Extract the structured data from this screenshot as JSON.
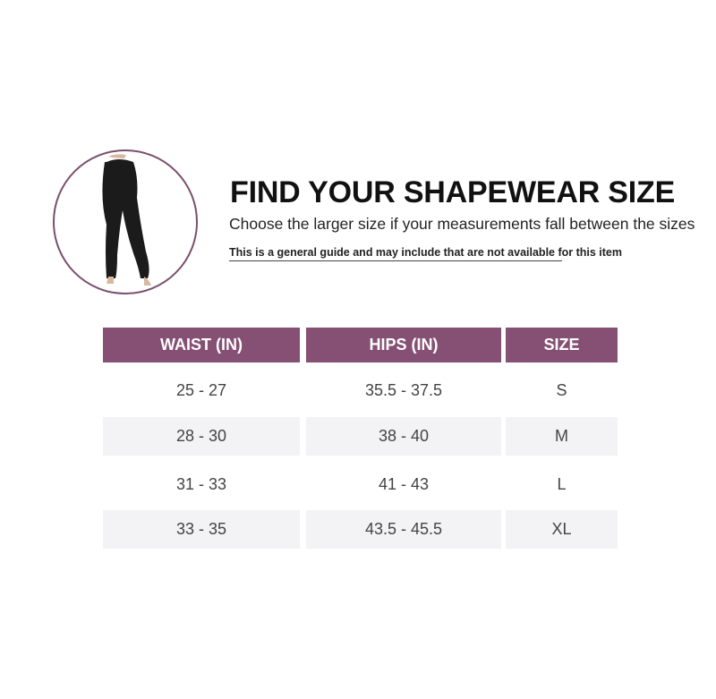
{
  "header": {
    "title": "FIND YOUR SHAPEWEAR SIZE",
    "subtitle": "Choose the larger size if your measurements fall between the sizes",
    "note": "This is a general guide and may include that are not available for this item"
  },
  "product_image": {
    "icon": "leggings-model-photo"
  },
  "colors": {
    "accent": "#855073",
    "circle_border": "#7a4f6c",
    "row_alt": "#f3f2f4"
  },
  "table": {
    "columns": [
      "WAIST (IN)",
      "HIPS (IN)",
      "SIZE"
    ],
    "rows": [
      [
        "25 - 27",
        "35.5 - 37.5",
        "S"
      ],
      [
        "28 - 30",
        "38 - 40",
        "M"
      ],
      [
        "31 - 33",
        "41 - 43",
        "L"
      ],
      [
        "33 - 35",
        "43.5 - 45.5",
        "XL"
      ]
    ]
  }
}
